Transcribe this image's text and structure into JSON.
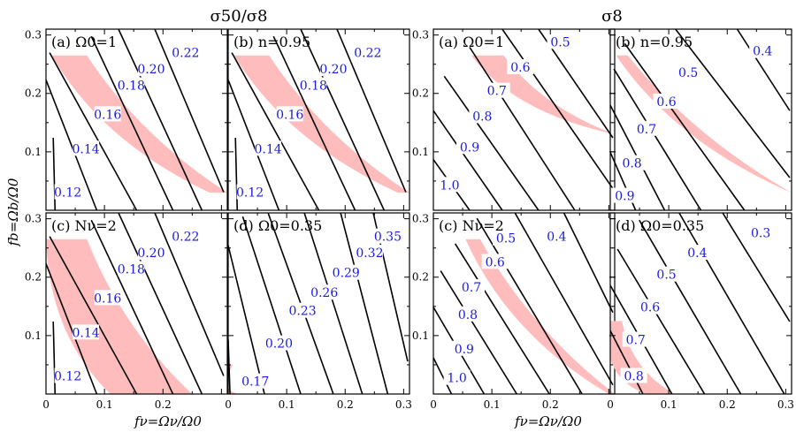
{
  "titles": {
    "left": "σ50/σ8",
    "right": "σ8"
  },
  "axes": {
    "xlabel": "fν=Ων/Ω0",
    "ylabel": "fb=Ωb/Ω0"
  },
  "colors": {
    "band": "#ffbcbc",
    "contour": "#000000",
    "label": "#1a1ae6"
  },
  "chart_data": [
    {
      "group": "left",
      "type": "contour",
      "panel": "(a) Ω0=1",
      "xlim": [
        0,
        0.31
      ],
      "ylim": [
        0,
        0.31
      ],
      "xticks": [
        "0",
        "0.1",
        "0.2"
      ],
      "yticks": [
        "0.1",
        "0.2",
        "0.3"
      ],
      "contour_levels": [
        "0.12",
        "0.14",
        "0.16",
        "0.18",
        "0.20",
        "0.22"
      ],
      "band": {
        "x_at_top": [
          0.01,
          0.07
        ],
        "x_at_bottom": [
          0.28,
          0.31
        ],
        "y_range": [
          0.03,
          0.265
        ]
      }
    },
    {
      "group": "left",
      "type": "contour",
      "panel": "(b) n=0.95",
      "xlim": [
        0,
        0.31
      ],
      "ylim": [
        0,
        0.31
      ],
      "xticks": [
        "0",
        "0.1",
        "0.2"
      ],
      "yticks": [
        "0.1",
        "0.2",
        "0.3"
      ],
      "contour_levels": [
        "0.12",
        "0.14",
        "0.16",
        "0.18",
        "0.20",
        "0.22"
      ],
      "band": {
        "x_at_top": [
          0.01,
          0.07
        ],
        "x_at_bottom": [
          0.29,
          0.31
        ],
        "y_range": [
          0.03,
          0.265
        ]
      }
    },
    {
      "group": "left",
      "type": "contour",
      "panel": "(c) Nν=2",
      "xlim": [
        0,
        0.31
      ],
      "ylim": [
        0,
        0.31
      ],
      "xticks": [
        "0",
        "0.1",
        "0.2"
      ],
      "yticks": [
        "0.1",
        "0.2",
        "0.3"
      ],
      "contour_levels": [
        "0.12",
        "0.14",
        "0.16",
        "0.18",
        "0.20",
        "0.22"
      ],
      "band": {
        "x_at_top": [
          0.0,
          0.07
        ],
        "x_at_bottom": [
          0.11,
          0.25
        ],
        "y_range": [
          0.0,
          0.265
        ]
      }
    },
    {
      "group": "left",
      "type": "contour",
      "panel": "(d) Ω0=0.35",
      "xlim": [
        0,
        0.31
      ],
      "ylim": [
        0,
        0.31
      ],
      "xticks": [
        "0",
        "0.1",
        "0.2",
        "0.3"
      ],
      "yticks": [
        "0.1",
        "0.2",
        "0.3"
      ],
      "contour_levels": [
        "0.17",
        "0.20",
        "0.23",
        "0.26",
        "0.29",
        "0.32",
        "0.35"
      ],
      "band": {
        "x_at_top": [
          0.0,
          0.008
        ],
        "x_at_bottom": [
          0.0,
          0.02
        ],
        "y_range": [
          0.0,
          0.05
        ]
      }
    },
    {
      "group": "right",
      "type": "contour",
      "panel": "(a) Ω0=1",
      "xlim": [
        0,
        0.31
      ],
      "ylim": [
        0,
        0.31
      ],
      "xticks": [
        "0",
        "0.1",
        "0.2"
      ],
      "yticks": [
        "0.1",
        "0.2",
        "0.3"
      ],
      "contour_levels": [
        "1.0",
        "0.9",
        "0.8",
        "0.7",
        "0.6",
        "0.5"
      ],
      "band": {
        "x_at_top": [
          0.065,
          0.12
        ],
        "x_at_bottom": [
          0.31,
          0.31
        ],
        "y_range": [
          0.13,
          0.265
        ]
      }
    },
    {
      "group": "right",
      "type": "contour",
      "panel": "(b) n=0.95",
      "xlim": [
        0,
        0.31
      ],
      "ylim": [
        0,
        0.31
      ],
      "xticks": [
        "0",
        "0.1",
        "0.2"
      ],
      "yticks": [
        "0.1",
        "0.2",
        "0.3"
      ],
      "contour_levels": [
        "0.9",
        "0.8",
        "0.7",
        "0.6",
        "0.5",
        "0.4"
      ],
      "band": {
        "x_at_top": [
          0.01,
          0.03
        ],
        "x_at_bottom": [
          0.31,
          0.31
        ],
        "y_range": [
          0.03,
          0.265
        ]
      }
    },
    {
      "group": "right",
      "type": "contour",
      "panel": "(c) Nν=2",
      "xlim": [
        0,
        0.31
      ],
      "ylim": [
        0,
        0.31
      ],
      "xticks": [
        "0",
        "0.1",
        "0.2"
      ],
      "yticks": [
        "0.1",
        "0.2",
        "0.3"
      ],
      "contour_levels": [
        "1.0",
        "0.9",
        "0.8",
        "0.7",
        "0.6",
        "0.5",
        "0.4"
      ],
      "band": {
        "x_at_top": [
          0.055,
          0.08
        ],
        "x_at_bottom": [
          0.3,
          0.31
        ],
        "y_range": [
          0.0,
          0.265
        ]
      }
    },
    {
      "group": "right",
      "type": "contour",
      "panel": "(d) Ω0=0.35",
      "xlim": [
        0,
        0.31
      ],
      "ylim": [
        0,
        0.31
      ],
      "xticks": [
        "0",
        "0.1",
        "0.2",
        "0.3"
      ],
      "yticks": [
        "0.1",
        "0.2",
        "0.3"
      ],
      "contour_levels": [
        "0.8",
        "0.7",
        "0.6",
        "0.5",
        "0.4",
        "0.3"
      ],
      "band": {
        "x_at_top": [
          0.0,
          0.02
        ],
        "x_at_bottom": [
          0.06,
          0.11
        ],
        "y_range": [
          0.0,
          0.125
        ]
      }
    }
  ]
}
